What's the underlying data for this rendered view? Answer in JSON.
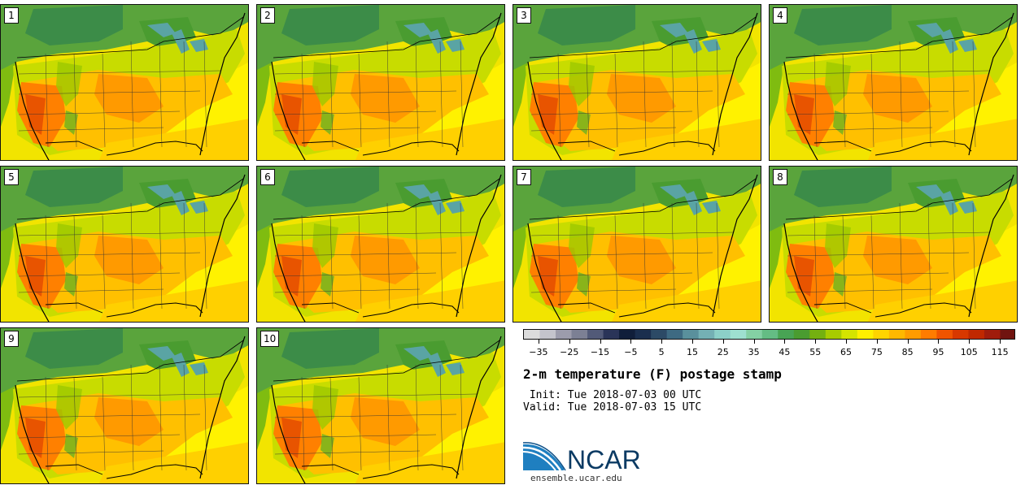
{
  "members": [
    "1",
    "2",
    "3",
    "4",
    "5",
    "6",
    "7",
    "8",
    "9",
    "10"
  ],
  "colorbar": {
    "colors": [
      "#dcdcdc",
      "#c4c4cc",
      "#9c9cac",
      "#7c8094",
      "#525a78",
      "#2a3458",
      "#101e3a",
      "#1a2e4e",
      "#2c4a66",
      "#3e6a82",
      "#5a909c",
      "#74b0b4",
      "#8cd0c8",
      "#9ee0d0",
      "#84d0a4",
      "#64bc84",
      "#48a454",
      "#4a9c30",
      "#74b010",
      "#a8cc00",
      "#d4e400",
      "#fff000",
      "#ffd400",
      "#ffb800",
      "#ff9c00",
      "#ff7c00",
      "#f05400",
      "#d83800",
      "#c02800",
      "#a01c0c",
      "#701410"
    ],
    "tick_labels": [
      "−35",
      "−25",
      "−15",
      "−5",
      "5",
      "15",
      "25",
      "35",
      "45",
      "55",
      "65",
      "75",
      "85",
      "95",
      "105",
      "115"
    ],
    "tick_values": [
      -35,
      -25,
      -15,
      -5,
      5,
      15,
      25,
      35,
      45,
      55,
      65,
      75,
      85,
      95,
      105,
      115
    ],
    "min": -40,
    "max": 120
  },
  "title": "2-m temperature (F) postage stamp",
  "init_line": " Init: Tue 2018-07-03 00 UTC",
  "valid_line": "Valid: Tue 2018-07-03 15 UTC",
  "logo_text": "NCAR",
  "url": "ensemble.ucar.edu"
}
